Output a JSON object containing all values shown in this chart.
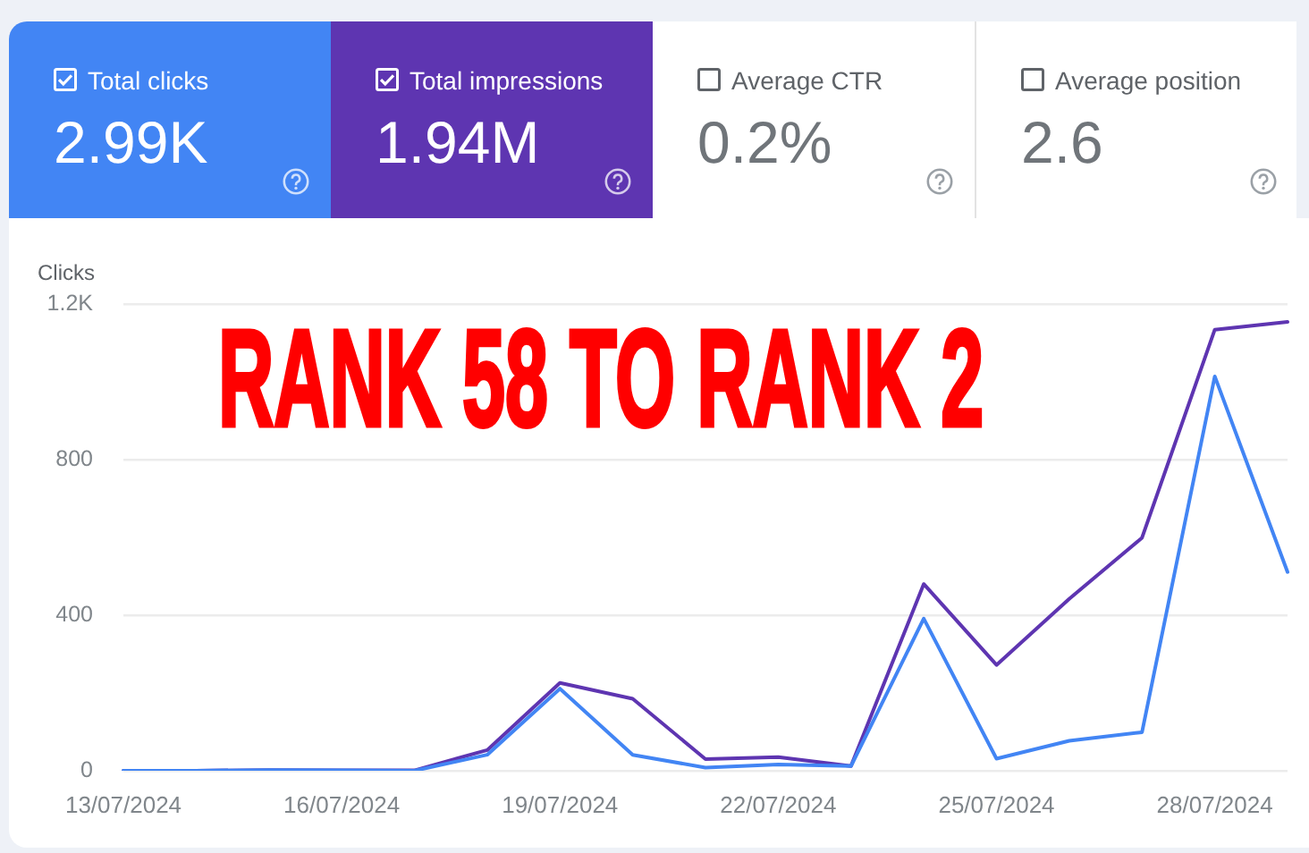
{
  "chart_data": [
    {
      "type": "other",
      "annotations": [
        "Total clicks",
        "2.99K",
        "Total impressions",
        "1.94M",
        "Average CTR",
        "0.2%",
        "Average position",
        "2.6"
      ]
    },
    {
      "type": "line",
      "title": "RANK 58 TO RANK 2",
      "ylabel": "Clicks",
      "categories": [
        "13/07/2024",
        null,
        null,
        "16/07/2024",
        null,
        null,
        "19/07/2024",
        null,
        null,
        "22/07/2024",
        null,
        null,
        "25/07/2024",
        null,
        null,
        "28/07/2024",
        null
      ],
      "series": [
        {
          "color": "#4285f4",
          "values": [
            0,
            0,
            2,
            1,
            0,
            41,
            211,
            41,
            8,
            16,
            12,
            391,
            31,
            77,
            99,
            1014,
            511
          ]
        },
        {
          "color": "#5e35b1",
          "values": [
            0,
            0,
            2,
            1,
            1,
            53,
            226,
            185,
            30,
            35,
            12,
            480,
            272,
            442,
            599,
            1134,
            1154
          ]
        }
      ],
      "ylim": [
        0,
        1200
      ],
      "yticks": [
        0,
        400,
        800,
        {
          "value": 1200,
          "label": "1.2K"
        }
      ],
      "grid": "y",
      "legend": false
    }
  ]
}
